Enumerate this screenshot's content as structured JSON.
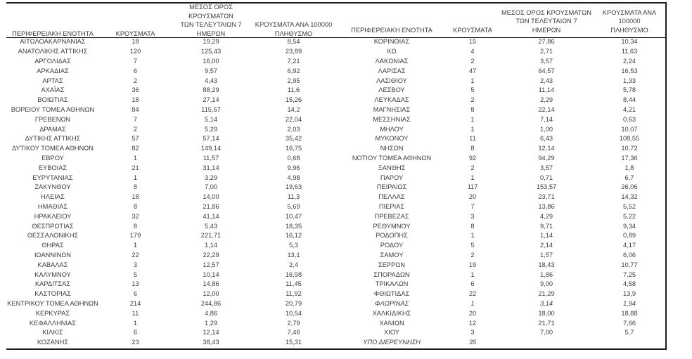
{
  "page": {
    "background_color": "#ffffff",
    "text_color": "#3d3d3d",
    "border_color": "#1c1c1c"
  },
  "headers": {
    "region": "ΠΕΡΙΦΕΡΕΙΑΚΗ ΕΝΟΤΗΤΑ",
    "cases": "ΚΡΟΥΣΜΑΤΑ",
    "avg7_line1": "ΜΕΣΟΣ ΟΡΟΣ ΚΡΟΥΣΜΑΤΩΝ",
    "avg7_line2": "ΤΩΝ ΤΕΛΕΥΤΑΙΩΝ 7",
    "avg7_line3": "ΗΜΕΡΩΝ",
    "per100k_line1": "ΚΡΟΥΣΜΑΤΑ ΑΝΑ 100000",
    "per100k_line2": "ΠΛΗΘΥΣΜΟ"
  },
  "tables": [
    {
      "id": "left",
      "rows": [
        {
          "region": "ΑΙΤΩΛΟΑΚΑΡΝΑΝΙΑΣ",
          "cases": "18",
          "avg7": "19,29",
          "per100k": "8,54",
          "italic": false
        },
        {
          "region": "ΑΝΑΤΟΛΙΚΗΣ ΑΤΤΙΚΗΣ",
          "cases": "120",
          "avg7": "125,43",
          "per100k": "23,89",
          "italic": false
        },
        {
          "region": "ΑΡΓΟΛΙΔΑΣ",
          "cases": "7",
          "avg7": "16,00",
          "per100k": "7,21",
          "italic": false
        },
        {
          "region": "ΑΡΚΑΔΙΑΣ",
          "cases": "6",
          "avg7": "9,57",
          "per100k": "6,92",
          "italic": false
        },
        {
          "region": "ΑΡΤΑΣ",
          "cases": "2",
          "avg7": "4,43",
          "per100k": "2,95",
          "italic": false
        },
        {
          "region": "ΑΧΑΪΑΣ",
          "cases": "36",
          "avg7": "88,29",
          "per100k": "11,6",
          "italic": false
        },
        {
          "region": "ΒΟΙΩΤΙΑΣ",
          "cases": "18",
          "avg7": "27,14",
          "per100k": "15,26",
          "italic": false
        },
        {
          "region": "ΒΟΡΕΙΟΥ ΤΟΜΕΑ ΑΘΗΝΩΝ",
          "cases": "84",
          "avg7": "115,57",
          "per100k": "14,2",
          "italic": false
        },
        {
          "region": "ΓΡΕΒΕΝΩΝ",
          "cases": "7",
          "avg7": "5,14",
          "per100k": "22,04",
          "italic": false
        },
        {
          "region": "ΔΡΑΜΑΣ",
          "cases": "2",
          "avg7": "5,29",
          "per100k": "2,03",
          "italic": false
        },
        {
          "region": "ΔΥΤΙΚΗΣ ΑΤΤΙΚΗΣ",
          "cases": "57",
          "avg7": "57,14",
          "per100k": "35,42",
          "italic": false
        },
        {
          "region": "ΔΥΤΙΚΟΥ ΤΟΜΕΑ ΑΘΗΝΩΝ",
          "cases": "82",
          "avg7": "149,14",
          "per100k": "16,75",
          "italic": false
        },
        {
          "region": "ΕΒΡΟΥ",
          "cases": "1",
          "avg7": "11,57",
          "per100k": "0,68",
          "italic": false
        },
        {
          "region": "ΕΥΒΟΙΑΣ",
          "cases": "21",
          "avg7": "31,14",
          "per100k": "9,96",
          "italic": false
        },
        {
          "region": "ΕΥΡΥΤΑΝΙΑΣ",
          "cases": "1",
          "avg7": "3,29",
          "per100k": "4,98",
          "italic": false
        },
        {
          "region": "ΖΑΚΥΝΘΟΥ",
          "cases": "8",
          "avg7": "7,00",
          "per100k": "19,63",
          "italic": false
        },
        {
          "region": "ΗΛΕΙΑΣ",
          "cases": "18",
          "avg7": "14,00",
          "per100k": "11,3",
          "italic": false
        },
        {
          "region": "ΗΜΑΘΙΑΣ",
          "cases": "8",
          "avg7": "21,86",
          "per100k": "5,69",
          "italic": false
        },
        {
          "region": "ΗΡΑΚΛΕΙΟΥ",
          "cases": "32",
          "avg7": "41,14",
          "per100k": "10,47",
          "italic": false
        },
        {
          "region": "ΘΕΣΠΡΩΤΙΑΣ",
          "cases": "8",
          "avg7": "5,43",
          "per100k": "18,35",
          "italic": false
        },
        {
          "region": "ΘΕΣΣΑΛΟΝΙΚΗΣ",
          "cases": "179",
          "avg7": "221,71",
          "per100k": "16,12",
          "italic": false
        },
        {
          "region": "ΘΗΡΑΣ",
          "cases": "1",
          "avg7": "1,14",
          "per100k": "5,3",
          "italic": false
        },
        {
          "region": "ΙΩΑΝΝΙΝΩΝ",
          "cases": "22",
          "avg7": "22,29",
          "per100k": "13,1",
          "italic": false
        },
        {
          "region": "ΚΑΒΑΛΑΣ",
          "cases": "3",
          "avg7": "12,57",
          "per100k": "2,4",
          "italic": false
        },
        {
          "region": "ΚΑΛΥΜΝΟΥ",
          "cases": "5",
          "avg7": "10,14",
          "per100k": "16,98",
          "italic": false
        },
        {
          "region": "ΚΑΡΔΙΤΣΑΣ",
          "cases": "13",
          "avg7": "14,86",
          "per100k": "11,45",
          "italic": false
        },
        {
          "region": "ΚΑΣΤΟΡΙΑΣ",
          "cases": "6",
          "avg7": "12,00",
          "per100k": "11,92",
          "italic": false
        },
        {
          "region": "ΚΕΝΤΡΙΚΟΥ ΤΟΜΕΑ ΑΘΗΝΩΝ",
          "cases": "214",
          "avg7": "244,86",
          "per100k": "20,79",
          "italic": false
        },
        {
          "region": "ΚΕΡΚΥΡΑΣ",
          "cases": "11",
          "avg7": "4,86",
          "per100k": "10,54",
          "italic": false
        },
        {
          "region": "ΚΕΦΑΛΛΗΝΙΑΣ",
          "cases": "1",
          "avg7": "1,29",
          "per100k": "2,79",
          "italic": false
        },
        {
          "region": "ΚΙΛΚΙΣ",
          "cases": "6",
          "avg7": "12,14",
          "per100k": "7,46",
          "italic": false
        },
        {
          "region": "ΚΟΖΑΝΗΣ",
          "cases": "23",
          "avg7": "38,43",
          "per100k": "15,31",
          "italic": false
        }
      ]
    },
    {
      "id": "right",
      "rows": [
        {
          "region": "ΚΟΡΙΝΘΙΑΣ",
          "cases": "15",
          "avg7": "27,86",
          "per100k": "10,34",
          "italic": false
        },
        {
          "region": "ΚΩ",
          "cases": "4",
          "avg7": "2,71",
          "per100k": "11,63",
          "italic": false
        },
        {
          "region": "ΛΑΚΩΝΙΑΣ",
          "cases": "2",
          "avg7": "3,57",
          "per100k": "2,24",
          "italic": false
        },
        {
          "region": "ΛΑΡΙΣΑΣ",
          "cases": "47",
          "avg7": "64,57",
          "per100k": "16,53",
          "italic": false
        },
        {
          "region": "ΛΑΣΙΘΙΟΥ",
          "cases": "1",
          "avg7": "2,43",
          "per100k": "1,33",
          "italic": false
        },
        {
          "region": "ΛΕΣΒΟΥ",
          "cases": "5",
          "avg7": "11,14",
          "per100k": "5,78",
          "italic": false
        },
        {
          "region": "ΛΕΥΚΑΔΑΣ",
          "cases": "2",
          "avg7": "2,29",
          "per100k": "8,44",
          "italic": false
        },
        {
          "region": "ΜΑΓΝΗΣΙΑΣ",
          "cases": "8",
          "avg7": "22,14",
          "per100k": "4,21",
          "italic": false
        },
        {
          "region": "ΜΕΣΣΗΝΙΑΣ",
          "cases": "1",
          "avg7": "7,14",
          "per100k": "0,63",
          "italic": false
        },
        {
          "region": "ΜΗΛΟΥ",
          "cases": "1",
          "avg7": "1,00",
          "per100k": "10,07",
          "italic": false
        },
        {
          "region": "ΜΥΚΟΝΟΥ",
          "cases": "11",
          "avg7": "6,43",
          "per100k": "108,55",
          "italic": false
        },
        {
          "region": "ΝΗΣΩΝ",
          "cases": "8",
          "avg7": "12,14",
          "per100k": "10,72",
          "italic": false
        },
        {
          "region": "ΝΟΤΙΟΥ ΤΟΜΕΑ ΑΘΗΝΩΝ",
          "cases": "92",
          "avg7": "94,29",
          "per100k": "17,36",
          "italic": false
        },
        {
          "region": "ΞΑΝΘΗΣ",
          "cases": "2",
          "avg7": "3,57",
          "per100k": "1,8",
          "italic": false
        },
        {
          "region": "ΠΑΡΟΥ",
          "cases": "1",
          "avg7": "0,71",
          "per100k": "6,7",
          "italic": false
        },
        {
          "region": "ΠΕΙΡΑΙΩΣ",
          "cases": "117",
          "avg7": "153,57",
          "per100k": "26,06",
          "italic": false
        },
        {
          "region": "ΠΕΛΛΑΣ",
          "cases": "20",
          "avg7": "23,71",
          "per100k": "14,32",
          "italic": false
        },
        {
          "region": "ΠΙΕΡΙΑΣ",
          "cases": "7",
          "avg7": "13,86",
          "per100k": "5,52",
          "italic": false
        },
        {
          "region": "ΠΡΕΒΕΖΑΣ",
          "cases": "3",
          "avg7": "4,29",
          "per100k": "5,22",
          "italic": false
        },
        {
          "region": "ΡΕΘΥΜΝΟΥ",
          "cases": "8",
          "avg7": "9,71",
          "per100k": "9,34",
          "italic": false
        },
        {
          "region": "ΡΟΔΟΠΗΣ",
          "cases": "1",
          "avg7": "1,14",
          "per100k": "0,89",
          "italic": false
        },
        {
          "region": "ΡΟΔΟΥ",
          "cases": "5",
          "avg7": "2,14",
          "per100k": "4,17",
          "italic": false
        },
        {
          "region": "ΣΑΜΟΥ",
          "cases": "2",
          "avg7": "1,57",
          "per100k": "6,06",
          "italic": false
        },
        {
          "region": "ΣΕΡΡΩΝ",
          "cases": "19",
          "avg7": "18,43",
          "per100k": "10,77",
          "italic": false
        },
        {
          "region": "ΣΠΟΡΑΔΩΝ",
          "cases": "1",
          "avg7": "1,86",
          "per100k": "7,25",
          "italic": false
        },
        {
          "region": "ΤΡΙΚΑΛΩΝ",
          "cases": "6",
          "avg7": "9,00",
          "per100k": "4,58",
          "italic": false
        },
        {
          "region": "ΦΘΙΩΤΙΔΑΣ",
          "cases": "22",
          "avg7": "21,29",
          "per100k": "13,9",
          "italic": false
        },
        {
          "region": "ΦΛΩΡΙΝΑΣ",
          "cases": "1",
          "avg7": "3,14",
          "per100k": "1,94",
          "italic": true
        },
        {
          "region": "ΧΑΛΚΙΔΙΚΗΣ",
          "cases": "20",
          "avg7": "18,00",
          "per100k": "18,88",
          "italic": false
        },
        {
          "region": "ΧΑΝΙΩΝ",
          "cases": "12",
          "avg7": "21,71",
          "per100k": "7,66",
          "italic": false
        },
        {
          "region": "ΧΙΟΥ",
          "cases": "3",
          "avg7": "7,00",
          "per100k": "5,7",
          "italic": false
        },
        {
          "region": "ΥΠΟ ΔΙΕΡΕΥΝΗΣΗ",
          "cases": "35",
          "avg7": "",
          "per100k": "",
          "italic": true
        }
      ]
    }
  ]
}
